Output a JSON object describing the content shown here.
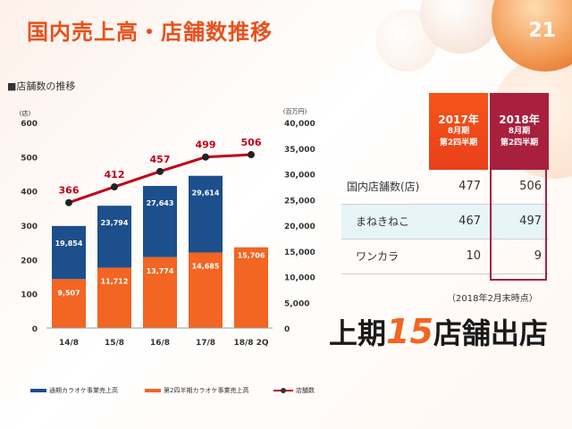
{
  "page": {
    "title": "国内売上高・店舗数推移",
    "number": "21",
    "subtitle": "■店舗数の推移"
  },
  "chart_data": {
    "type": "bar",
    "categories": [
      "14/8",
      "15/8",
      "16/8",
      "17/8",
      "18/8 2Q"
    ],
    "left_axis": {
      "unit": "(店)",
      "range": [
        0,
        600
      ],
      "ticks": [
        0,
        100,
        200,
        300,
        400,
        500,
        600
      ]
    },
    "right_axis": {
      "unit": "(百万円)",
      "range": [
        0,
        40000
      ],
      "ticks": [
        "0",
        "5,000",
        "10,000",
        "15,000",
        "20,000",
        "25,000",
        "30,000",
        "35,000",
        "40,000"
      ]
    },
    "series": [
      {
        "name": "第2四半期カラオケ事業売上高",
        "axis": "right",
        "color": "#f26522",
        "values": [
          9507,
          11712,
          13774,
          14685,
          15706
        ],
        "labels": [
          "9,507",
          "11,712",
          "13,774",
          "14,685",
          "15,706"
        ]
      },
      {
        "name": "通期カラオケ事業売上高",
        "axis": "right",
        "color": "#1c4f8c",
        "values": [
          19854,
          23794,
          27643,
          29614,
          null
        ],
        "labels": [
          "19,854",
          "23,794",
          "27,643",
          "29,614",
          ""
        ]
      },
      {
        "name": "店舗数",
        "type": "line",
        "axis": "left",
        "color": "#c0001a",
        "values": [
          366,
          412,
          457,
          499,
          506
        ]
      }
    ],
    "legend": [
      {
        "label": "通期カラオケ事業売上高",
        "color": "#1c4f8c"
      },
      {
        "label": "第2四半期カラオケ事業売上高",
        "color": "#f26522"
      },
      {
        "label": "店舗数",
        "color": "#c0001a"
      }
    ]
  },
  "table": {
    "header_2017": {
      "year": "2017年",
      "period": "8月期",
      "quarter": "第2四半期"
    },
    "header_2018": {
      "year": "2018年",
      "period": "8月期",
      "quarter": "第2四半期"
    },
    "rows": [
      {
        "label": "国内店舗数(店)",
        "v2017": "477",
        "v2018": "506"
      },
      {
        "label": "まねきねこ",
        "v2017": "467",
        "v2018": "497"
      },
      {
        "label": "ワンカラ",
        "v2017": "10",
        "v2018": "9"
      }
    ],
    "as_of": "（2018年2月末時点）"
  },
  "headline": {
    "pre": "上期",
    "num": "15",
    "post": "店舗出店"
  }
}
